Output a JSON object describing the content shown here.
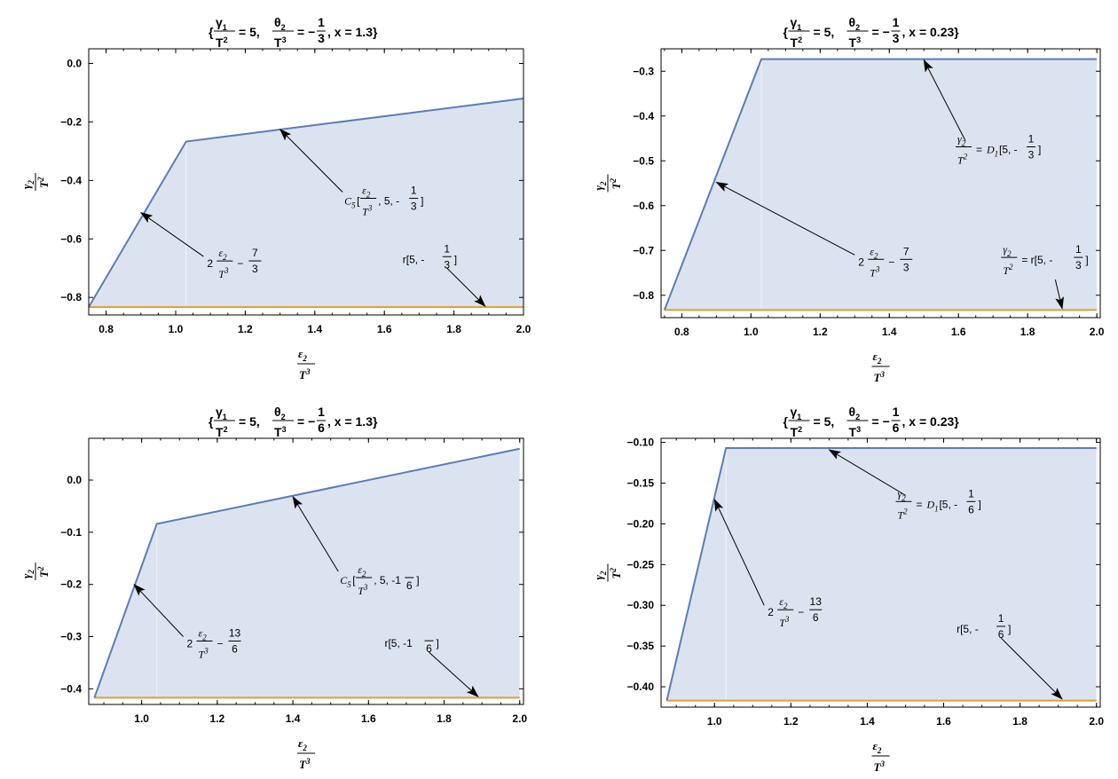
{
  "colors": {
    "boundary": "#5B7DB4",
    "floor": "#E0A030",
    "fill": "#DCE3F0"
  },
  "chart_data": [
    {
      "type": "area",
      "title": {
        "g1": "5",
        "th2": "1",
        "th2_den": "3",
        "x": "x = 1.3"
      },
      "xlim": [
        0.75,
        2.0
      ],
      "ylim": [
        -0.86,
        0.05
      ],
      "xticks": [
        0.8,
        1.0,
        1.2,
        1.4,
        1.6,
        1.8,
        2.0
      ],
      "xtick_labels": [
        "0.8",
        "1.0",
        "1.2",
        "1.4",
        "1.6",
        "1.8",
        "2.0"
      ],
      "yticks": [
        0.0,
        -0.2,
        -0.4,
        -0.6,
        -0.8
      ],
      "ytick_labels": [
        "0.0",
        "-0.2",
        "-0.4",
        "-0.6",
        "-0.8"
      ],
      "upper": [
        [
          0.75,
          -0.833
        ],
        [
          1.03,
          -0.267
        ],
        [
          2.0,
          -0.12
        ]
      ],
      "lower": [
        [
          0.75,
          -0.833
        ],
        [
          2.0,
          -0.833
        ]
      ],
      "annotations": [
        {
          "kind": "C5",
          "head": [
            1.3,
            -0.225
          ],
          "tail": [
            1.48,
            -0.44
          ],
          "num": "ε2",
          "den": "T3",
          "a": "5",
          "b": "-",
          "bn": "1",
          "bd": "3"
        },
        {
          "kind": "lin",
          "head": [
            0.9,
            -0.51
          ],
          "tail": [
            1.08,
            -0.66
          ],
          "num": "ε2",
          "den": "T3",
          "coef": "2",
          "cn": "7",
          "cd": "3"
        },
        {
          "kind": "r",
          "head": [
            1.89,
            -0.83
          ],
          "tail": [
            1.78,
            -0.7
          ],
          "a": "5",
          "b": "-",
          "bn": "1",
          "bd": "3"
        }
      ]
    },
    {
      "type": "area",
      "title": {
        "g1": "5",
        "th2": "1",
        "th2_den": "3",
        "x": "x = 0.23"
      },
      "xlim": [
        0.74,
        2.01
      ],
      "ylim": [
        -0.85,
        -0.25
      ],
      "xticks": [
        0.8,
        1.0,
        1.2,
        1.4,
        1.6,
        1.8,
        2.0
      ],
      "xtick_labels": [
        "0.8",
        "1.0",
        "1.2",
        "1.4",
        "1.6",
        "1.8",
        "2.0"
      ],
      "yticks": [
        -0.3,
        -0.4,
        -0.5,
        -0.6,
        -0.7,
        -0.8
      ],
      "ytick_labels": [
        "-0.3",
        "-0.4",
        "-0.5",
        "-0.6",
        "-0.7",
        "-0.8"
      ],
      "upper": [
        [
          0.75,
          -0.833
        ],
        [
          1.03,
          -0.273
        ],
        [
          2.0,
          -0.273
        ]
      ],
      "lower": [
        [
          0.75,
          -0.833
        ],
        [
          2.0,
          -0.833
        ]
      ],
      "annotations": [
        {
          "kind": "D1",
          "head": [
            1.5,
            -0.275
          ],
          "tail": [
            1.62,
            -0.455
          ],
          "a": "5",
          "b": "-",
          "bn": "1",
          "bd": "3"
        },
        {
          "kind": "lin",
          "head": [
            0.9,
            -0.548
          ],
          "tail": [
            1.3,
            -0.71
          ],
          "num": "ε2",
          "den": "T3",
          "coef": "2",
          "cn": "7",
          "cd": "3"
        },
        {
          "kind": "r2",
          "head": [
            1.9,
            -0.83
          ],
          "tail": [
            1.88,
            -0.765
          ],
          "a": "5",
          "b": "-",
          "bn": "1",
          "bd": "3"
        }
      ]
    },
    {
      "type": "area",
      "title": {
        "g1": "5",
        "th2": "1",
        "th2_den": "6",
        "x": "x = 1.3"
      },
      "xlim": [
        0.86,
        2.01
      ],
      "ylim": [
        -0.43,
        0.08
      ],
      "xticks": [
        1.0,
        1.2,
        1.4,
        1.6,
        1.8,
        2.0
      ],
      "xtick_labels": [
        "1.0",
        "1.2",
        "1.4",
        "1.6",
        "1.8",
        "2.0"
      ],
      "yticks": [
        0.0,
        -0.1,
        -0.2,
        -0.3,
        -0.4
      ],
      "ytick_labels": [
        "0.0",
        "-0.1",
        "-0.2",
        "-0.3",
        "-0.4"
      ],
      "upper": [
        [
          0.875,
          -0.417
        ],
        [
          1.04,
          -0.084
        ],
        [
          2.0,
          0.06
        ]
      ],
      "lower": [
        [
          0.875,
          -0.417
        ],
        [
          2.0,
          -0.417
        ]
      ],
      "annotations": [
        {
          "kind": "C5",
          "head": [
            1.4,
            -0.032
          ],
          "tail": [
            1.52,
            -0.175
          ],
          "num": "ε2",
          "den": "T3",
          "a": "5",
          "b": "-1",
          "bn": "",
          "bd": "6"
        },
        {
          "kind": "lin",
          "head": [
            0.98,
            -0.2
          ],
          "tail": [
            1.11,
            -0.3
          ],
          "num": "ε2",
          "den": "T3",
          "coef": "2",
          "cn": "13",
          "cd": "6"
        },
        {
          "kind": "r",
          "head": [
            1.89,
            -0.415
          ],
          "tail": [
            1.76,
            -0.33
          ],
          "a": "5",
          "b": "-1",
          "bn": "",
          "bd": "6"
        }
      ]
    },
    {
      "type": "area",
      "title": {
        "g1": "5",
        "th2": "1",
        "th2_den": "6",
        "x": "x = 0.23"
      },
      "xlim": [
        0.86,
        2.01
      ],
      "ylim": [
        -0.425,
        -0.095
      ],
      "xticks": [
        1.0,
        1.2,
        1.4,
        1.6,
        1.8,
        2.0
      ],
      "xtick_labels": [
        "1.0",
        "1.2",
        "1.4",
        "1.6",
        "1.8",
        "2.0"
      ],
      "yticks": [
        -0.1,
        -0.15,
        -0.2,
        -0.25,
        -0.3,
        -0.35,
        -0.4
      ],
      "ytick_labels": [
        "-0.10",
        "-0.15",
        "-0.20",
        "-0.25",
        "-0.30",
        "-0.35",
        "-0.40"
      ],
      "upper": [
        [
          0.875,
          -0.417
        ],
        [
          1.03,
          -0.107
        ],
        [
          2.0,
          -0.107
        ]
      ],
      "lower": [
        [
          0.875,
          -0.417
        ],
        [
          2.0,
          -0.417
        ]
      ],
      "annotations": [
        {
          "kind": "D1",
          "head": [
            1.3,
            -0.109
          ],
          "tail": [
            1.5,
            -0.165
          ],
          "a": "5",
          "b": "-",
          "bn": "1",
          "bd": "6"
        },
        {
          "kind": "lin",
          "head": [
            1.0,
            -0.17
          ],
          "tail": [
            1.13,
            -0.3
          ],
          "num": "ε2",
          "den": "T3",
          "coef": "2",
          "cn": "13",
          "cd": "6"
        },
        {
          "kind": "r",
          "head": [
            1.91,
            -0.415
          ],
          "tail": [
            1.75,
            -0.34
          ],
          "a": "5",
          "b": "-",
          "bn": "1",
          "bd": "6"
        }
      ]
    }
  ]
}
